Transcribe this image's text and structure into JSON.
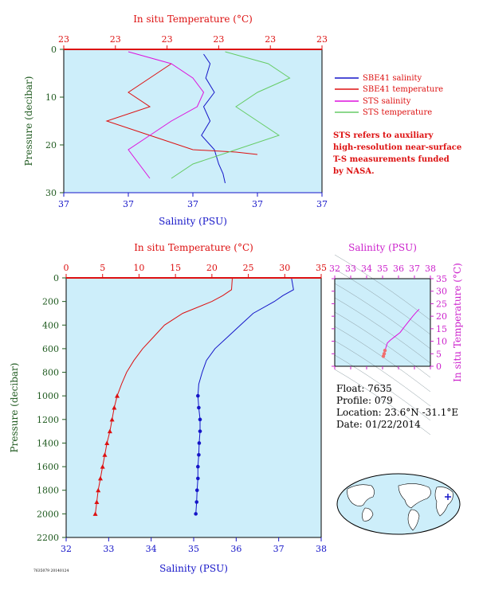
{
  "colors": {
    "panel_bg": "#cdeefa",
    "temp": "#dd1111",
    "sal": "#1515c8",
    "sts_sal": "#dd11dd",
    "sts_temp": "#66cc66",
    "sts_temp_pink": "#f2a0a0",
    "pressure": "#1f5a1f",
    "inset": "#cc22cc",
    "note": "#dd1111"
  },
  "top_panel": {
    "temp_axis_title": "In situ Temperature (°C)",
    "temp_ticks": [
      "23",
      "23",
      "23",
      "23",
      "23",
      "23"
    ],
    "sal_axis_title": "Salinity (PSU)",
    "sal_ticks": [
      "37",
      "37",
      "37",
      "37",
      "37"
    ],
    "pressure_axis_title": "Pressure (decibar)",
    "pressure_ticks": [
      "0",
      "10",
      "20",
      "30"
    ],
    "legend": [
      {
        "label": "SBE41 salinity",
        "color": "#1515c8"
      },
      {
        "label": "SBE41 temperature",
        "color": "#dd1111"
      },
      {
        "label": "STS salinity",
        "color": "#dd11dd"
      },
      {
        "label": "STS temperature",
        "color": "#66cc66"
      }
    ],
    "note": [
      "STS refers to auxiliary",
      "high-resolution near-surface",
      "T-S measurements funded",
      "by NASA."
    ]
  },
  "bottom_panel": {
    "temp_axis_title": "In situ Temperature (°C)",
    "temp_ticks": [
      "0",
      "5",
      "10",
      "15",
      "20",
      "25",
      "30",
      "35"
    ],
    "sal_axis_title": "Salinity (PSU)",
    "sal_ticks": [
      "32",
      "33",
      "34",
      "35",
      "36",
      "37",
      "38"
    ],
    "pressure_axis_title": "Pressure (decibar)",
    "pressure_ticks": [
      "0",
      "200",
      "400",
      "600",
      "800",
      "1000",
      "1200",
      "1400",
      "1600",
      "1800",
      "2000",
      "2200"
    ]
  },
  "inset": {
    "sal_axis_title": "Salinity (PSU)",
    "sal_ticks": [
      "32",
      "33",
      "34",
      "35",
      "36",
      "37",
      "38"
    ],
    "temp_axis_title": "In situ Temperature (°C)",
    "temp_ticks": [
      "0",
      "5",
      "10",
      "15",
      "20",
      "25",
      "30",
      "35"
    ]
  },
  "info": {
    "float": "Float:  7635",
    "profile": "Profile:  079",
    "location": "Location:  23.6°N  -31.1°E",
    "date": "Date:  01/22/2014"
  },
  "footer_code": "7635079 20140124",
  "chart_data": [
    {
      "type": "line",
      "series": [
        {
          "name": "SBE41 salinity",
          "x": [
            36.85,
            36.88,
            36.86,
            36.9,
            36.85,
            36.88,
            36.84,
            36.9,
            36.92,
            36.94,
            36.95
          ],
          "y": [
            1,
            3,
            6,
            9,
            12,
            15,
            18,
            21,
            24,
            26,
            28
          ]
        },
        {
          "name": "SBE41 temperature",
          "x": [
            36.7,
            36.6,
            36.5,
            36.6,
            36.4,
            36.6,
            36.8,
            37.0,
            37.1
          ],
          "y": [
            3,
            6,
            9,
            12,
            15,
            18,
            21,
            21.5,
            22
          ]
        },
        {
          "name": "STS salinity",
          "x": [
            36.5,
            36.7,
            36.8,
            36.85,
            36.82,
            36.7,
            36.6,
            36.5,
            36.55,
            36.6
          ],
          "y": [
            0.5,
            3,
            6,
            9,
            12,
            15,
            18,
            21,
            24,
            27
          ]
        },
        {
          "name": "STS temperature",
          "x": [
            36.95,
            37.15,
            37.25,
            37.1,
            37.0,
            37.1,
            37.2,
            37.0,
            36.8,
            36.7
          ],
          "y": [
            0.5,
            3,
            6,
            9,
            12,
            15,
            18,
            21,
            24,
            27
          ]
        }
      ]
    },
    {
      "type": "line",
      "ylim": [
        0,
        2200
      ],
      "temp_xlim": [
        0,
        35
      ],
      "sal_xlim": [
        32,
        38
      ],
      "series": [
        {
          "name": "temperature",
          "pressure": [
            0,
            100,
            150,
            200,
            300,
            400,
            500,
            600,
            700,
            800,
            900,
            1000,
            1100,
            1200,
            1300,
            1400,
            1500,
            1600,
            1700,
            1800,
            1900,
            2000
          ],
          "values": [
            22.8,
            22.7,
            21.5,
            20.0,
            16.0,
            13.5,
            12.0,
            10.5,
            9.3,
            8.3,
            7.6,
            7.0,
            6.6,
            6.3,
            6.0,
            5.6,
            5.3,
            5.0,
            4.7,
            4.4,
            4.2,
            4.0
          ]
        },
        {
          "name": "salinity",
          "pressure": [
            0,
            100,
            150,
            200,
            300,
            400,
            500,
            600,
            700,
            800,
            900,
            1000,
            1100,
            1200,
            1300,
            1400,
            1500,
            1600,
            1700,
            1800,
            1900,
            2000
          ],
          "values": [
            37.3,
            37.35,
            37.1,
            36.9,
            36.4,
            36.1,
            35.8,
            35.5,
            35.3,
            35.2,
            35.12,
            35.1,
            35.12,
            35.15,
            35.15,
            35.13,
            35.12,
            35.1,
            35.1,
            35.08,
            35.07,
            35.05
          ]
        }
      ]
    },
    {
      "type": "scatter",
      "xlim": [
        32,
        38
      ],
      "ylim": [
        0,
        35
      ],
      "x": [
        35.05,
        35.1,
        35.15,
        35.3,
        35.5,
        35.8,
        36.1,
        36.4,
        36.9,
        37.1,
        37.3
      ],
      "y": [
        4.0,
        5.0,
        6.3,
        9.3,
        10.5,
        12.0,
        13.5,
        16.0,
        20.0,
        21.5,
        22.8
      ]
    }
  ]
}
